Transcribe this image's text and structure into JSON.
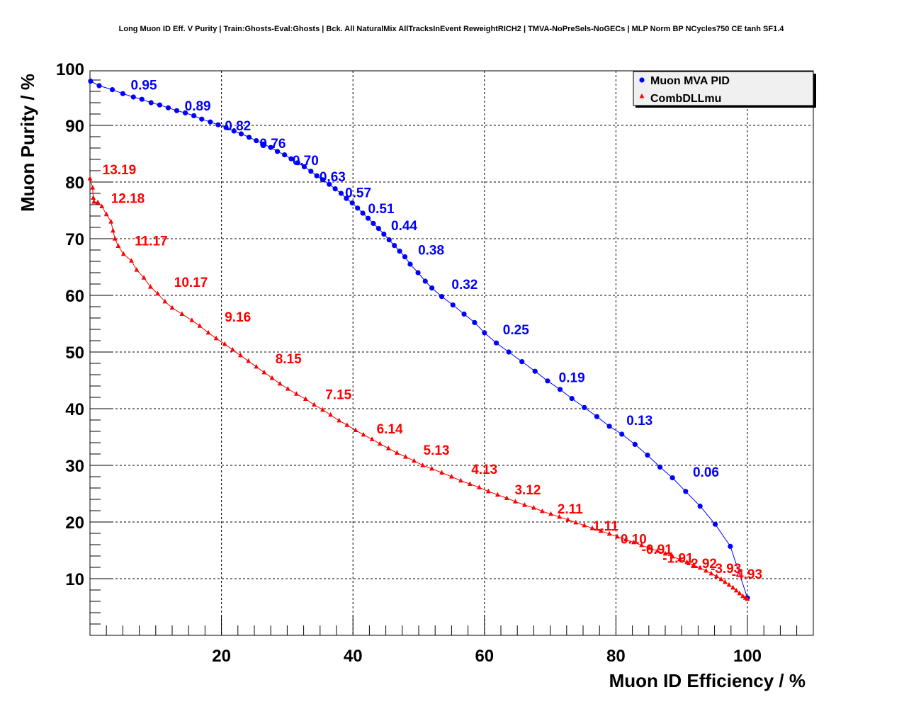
{
  "chart_data": {
    "type": "scatter",
    "title": "Long Muon ID Eff. V Purity | Train:Ghosts-Eval:Ghosts | Bck. All NaturalMix AllTracksInEvent ReweightRICH2 | TMVA-NoPreSels-NoGECs | MLP Norm BP NCycles750 CE tanh SF1.4",
    "xlabel": "Muon ID Efficiency / %",
    "ylabel": "Muon Purity / %",
    "xlim": [
      0,
      110
    ],
    "ylim": [
      0,
      100
    ],
    "x_ticks": [
      20,
      40,
      60,
      80,
      100
    ],
    "y_ticks": [
      10,
      20,
      30,
      40,
      50,
      60,
      70,
      80,
      90,
      100
    ],
    "grid": true,
    "legend_position": "top-right",
    "series": [
      {
        "name": "Muon MVA PID",
        "color": "#0000ff",
        "marker": "circle",
        "points": [
          [
            0.1,
            97.8
          ],
          [
            1.4,
            97.0
          ],
          [
            3.4,
            96.3
          ],
          [
            5.0,
            95.6
          ],
          [
            6.6,
            95.0
          ],
          [
            7.9,
            94.6
          ],
          [
            9.3,
            94.0
          ],
          [
            10.6,
            93.6
          ],
          [
            11.9,
            93.1
          ],
          [
            13.2,
            92.6
          ],
          [
            14.5,
            92.2
          ],
          [
            15.8,
            91.7
          ],
          [
            17.0,
            91.1
          ],
          [
            18.3,
            90.6
          ],
          [
            19.5,
            90.1
          ],
          [
            20.7,
            89.6
          ],
          [
            21.9,
            89.0
          ],
          [
            23.0,
            88.5
          ],
          [
            24.2,
            87.9
          ],
          [
            25.3,
            87.3
          ],
          [
            26.4,
            86.7
          ],
          [
            27.5,
            86.1
          ],
          [
            28.5,
            85.4
          ],
          [
            29.6,
            84.8
          ],
          [
            30.6,
            84.1
          ],
          [
            31.6,
            83.4
          ],
          [
            32.6,
            82.7
          ],
          [
            33.6,
            81.9
          ],
          [
            34.5,
            81.1
          ],
          [
            35.4,
            80.4
          ],
          [
            36.4,
            79.6
          ],
          [
            37.3,
            78.8
          ],
          [
            38.2,
            78.0
          ],
          [
            39.0,
            77.1
          ],
          [
            39.9,
            76.3
          ],
          [
            40.7,
            75.4
          ],
          [
            41.5,
            74.5
          ],
          [
            42.3,
            73.6
          ],
          [
            43.1,
            72.7
          ],
          [
            43.9,
            71.8
          ],
          [
            44.7,
            70.8
          ],
          [
            45.5,
            69.8
          ],
          [
            46.3,
            68.8
          ],
          [
            47.1,
            67.8
          ],
          [
            47.9,
            66.8
          ],
          [
            48.7,
            65.5
          ],
          [
            49.9,
            64.0
          ],
          [
            51.0,
            62.5
          ],
          [
            52.0,
            61.3
          ],
          [
            53.5,
            59.8
          ],
          [
            55.2,
            58.3
          ],
          [
            56.9,
            56.7
          ],
          [
            58.5,
            55.2
          ],
          [
            60.0,
            53.4
          ],
          [
            61.8,
            51.6
          ],
          [
            63.7,
            50.0
          ],
          [
            65.7,
            48.3
          ],
          [
            67.7,
            46.6
          ],
          [
            69.6,
            44.9
          ],
          [
            71.5,
            43.4
          ],
          [
            73.3,
            41.8
          ],
          [
            75.2,
            40.2
          ],
          [
            77.1,
            38.6
          ],
          [
            79.0,
            36.9
          ],
          [
            80.9,
            35.5
          ],
          [
            82.9,
            33.7
          ],
          [
            84.8,
            31.8
          ],
          [
            86.7,
            29.7
          ],
          [
            88.6,
            27.8
          ],
          [
            90.6,
            25.4
          ],
          [
            92.8,
            22.8
          ],
          [
            95.1,
            19.6
          ],
          [
            97.4,
            15.7
          ],
          [
            100.0,
            6.6
          ]
        ]
      },
      {
        "name": "CombDLLmu",
        "color": "#ff0000",
        "marker": "triangle",
        "points": [
          [
            0.0,
            80.6
          ],
          [
            0.4,
            79.0
          ],
          [
            0.5,
            77.2
          ],
          [
            0.6,
            76.5
          ],
          [
            1.2,
            76.4
          ],
          [
            1.8,
            75.7
          ],
          [
            2.5,
            74.3
          ],
          [
            3.2,
            73.0
          ],
          [
            3.5,
            71.4
          ],
          [
            3.8,
            70.0
          ],
          [
            4.3,
            68.7
          ],
          [
            5.1,
            67.3
          ],
          [
            6.3,
            66.1
          ],
          [
            7.1,
            64.5
          ],
          [
            8.2,
            63.1
          ],
          [
            9.2,
            61.5
          ],
          [
            10.3,
            60.3
          ],
          [
            11.4,
            58.9
          ],
          [
            12.5,
            57.8
          ],
          [
            14.0,
            56.7
          ],
          [
            15.5,
            55.6
          ],
          [
            16.7,
            54.6
          ],
          [
            18.0,
            53.4
          ],
          [
            19.2,
            52.4
          ],
          [
            20.5,
            51.4
          ],
          [
            21.7,
            50.4
          ],
          [
            22.9,
            49.4
          ],
          [
            24.1,
            48.4
          ],
          [
            25.3,
            47.4
          ],
          [
            26.5,
            46.4
          ],
          [
            27.7,
            45.4
          ],
          [
            28.9,
            44.4
          ],
          [
            30.1,
            43.5
          ],
          [
            31.4,
            42.6
          ],
          [
            32.8,
            41.7
          ],
          [
            34.1,
            40.7
          ],
          [
            35.4,
            39.8
          ],
          [
            36.6,
            38.9
          ],
          [
            37.9,
            37.9
          ],
          [
            39.1,
            37.1
          ],
          [
            40.4,
            36.2
          ],
          [
            41.6,
            35.4
          ],
          [
            42.9,
            34.6
          ],
          [
            44.1,
            33.8
          ],
          [
            45.4,
            33.0
          ],
          [
            46.7,
            32.2
          ],
          [
            48.0,
            31.5
          ],
          [
            49.3,
            30.8
          ],
          [
            50.6,
            30.0
          ],
          [
            52.0,
            29.4
          ],
          [
            53.5,
            28.7
          ],
          [
            55.0,
            28.0
          ],
          [
            56.4,
            27.3
          ],
          [
            57.8,
            26.7
          ],
          [
            59.2,
            26.1
          ],
          [
            60.6,
            25.4
          ],
          [
            62.0,
            24.8
          ],
          [
            63.4,
            24.2
          ],
          [
            64.7,
            23.6
          ],
          [
            66.1,
            23.0
          ],
          [
            67.5,
            22.5
          ],
          [
            68.8,
            21.9
          ],
          [
            70.1,
            21.4
          ],
          [
            71.4,
            20.9
          ],
          [
            72.7,
            20.4
          ],
          [
            73.9,
            19.9
          ],
          [
            75.2,
            19.4
          ],
          [
            76.4,
            18.9
          ],
          [
            77.7,
            18.4
          ],
          [
            79.0,
            17.9
          ],
          [
            80.2,
            17.4
          ],
          [
            81.5,
            16.9
          ],
          [
            82.7,
            16.4
          ],
          [
            83.9,
            15.9
          ],
          [
            85.1,
            15.4
          ],
          [
            86.3,
            14.9
          ],
          [
            87.5,
            14.4
          ],
          [
            88.6,
            13.9
          ],
          [
            89.7,
            13.4
          ],
          [
            90.8,
            12.9
          ],
          [
            91.8,
            12.4
          ],
          [
            92.8,
            11.9
          ],
          [
            93.7,
            11.4
          ],
          [
            94.5,
            10.9
          ],
          [
            95.3,
            10.4
          ],
          [
            96.0,
            9.9
          ],
          [
            96.6,
            9.4
          ],
          [
            97.2,
            8.9
          ],
          [
            97.8,
            8.4
          ],
          [
            98.3,
            7.9
          ],
          [
            98.8,
            7.4
          ],
          [
            99.3,
            6.9
          ],
          [
            99.7,
            6.6
          ],
          [
            100.0,
            6.4
          ]
        ]
      }
    ],
    "annotations": [
      {
        "series": "Muon MVA PID",
        "text": "0.95",
        "x": 6.2,
        "y": 96.3
      },
      {
        "series": "Muon MVA PID",
        "text": "0.89",
        "x": 14.4,
        "y": 92.6
      },
      {
        "series": "Muon MVA PID",
        "text": "0.82",
        "x": 20.5,
        "y": 89.1
      },
      {
        "series": "Muon MVA PID",
        "text": "0.76",
        "x": 25.8,
        "y": 86.0
      },
      {
        "series": "Muon MVA PID",
        "text": "0.70",
        "x": 30.8,
        "y": 83.0
      },
      {
        "series": "Muon MVA PID",
        "text": "0.63",
        "x": 34.9,
        "y": 80.1
      },
      {
        "series": "Muon MVA PID",
        "text": "0.57",
        "x": 38.8,
        "y": 77.3
      },
      {
        "series": "Muon MVA PID",
        "text": "0.51",
        "x": 42.3,
        "y": 74.5
      },
      {
        "series": "Muon MVA PID",
        "text": "0.44",
        "x": 45.8,
        "y": 71.5
      },
      {
        "series": "Muon MVA PID",
        "text": "0.38",
        "x": 49.9,
        "y": 67.2
      },
      {
        "series": "Muon MVA PID",
        "text": "0.32",
        "x": 55.0,
        "y": 61.1
      },
      {
        "series": "Muon MVA PID",
        "text": "0.25",
        "x": 62.8,
        "y": 53.1
      },
      {
        "series": "Muon MVA PID",
        "text": "0.19",
        "x": 71.3,
        "y": 44.7
      },
      {
        "series": "Muon MVA PID",
        "text": "0.13",
        "x": 81.6,
        "y": 37.1
      },
      {
        "series": "Muon MVA PID",
        "text": "0.06",
        "x": 91.7,
        "y": 28.0
      },
      {
        "series": "CombDLLmu",
        "text": "13.19",
        "x": 1.9,
        "y": 81.4
      },
      {
        "series": "CombDLLmu",
        "text": "12.18",
        "x": 3.2,
        "y": 76.3
      },
      {
        "series": "CombDLLmu",
        "text": "11.17",
        "x": 6.8,
        "y": 68.8
      },
      {
        "series": "CombDLLmu",
        "text": "10.17",
        "x": 12.8,
        "y": 61.5
      },
      {
        "series": "CombDLLmu",
        "text": "9.16",
        "x": 20.5,
        "y": 55.4
      },
      {
        "series": "CombDLLmu",
        "text": "8.15",
        "x": 28.2,
        "y": 48.0
      },
      {
        "series": "CombDLLmu",
        "text": "7.15",
        "x": 35.8,
        "y": 41.7
      },
      {
        "series": "CombDLLmu",
        "text": "6.14",
        "x": 43.6,
        "y": 35.6
      },
      {
        "series": "CombDLLmu",
        "text": "5.13",
        "x": 50.7,
        "y": 31.9
      },
      {
        "series": "CombDLLmu",
        "text": "4.13",
        "x": 58.0,
        "y": 28.5
      },
      {
        "series": "CombDLLmu",
        "text": "3.12",
        "x": 64.6,
        "y": 24.9
      },
      {
        "series": "CombDLLmu",
        "text": "2.11",
        "x": 71.1,
        "y": 21.5
      },
      {
        "series": "CombDLLmu",
        "text": "1.11",
        "x": 76.5,
        "y": 18.5
      },
      {
        "series": "CombDLLmu",
        "text": "0.10",
        "x": 80.7,
        "y": 16.2
      },
      {
        "series": "CombDLLmu",
        "text": "-0.91",
        "x": 83.9,
        "y": 14.4
      },
      {
        "series": "CombDLLmu",
        "text": "-1.91",
        "x": 87.1,
        "y": 12.8
      },
      {
        "series": "CombDLLmu",
        "text": "-2.92",
        "x": 90.7,
        "y": 11.9
      },
      {
        "series": "CombDLLmu",
        "text": "-3.93",
        "x": 94.4,
        "y": 11.0
      },
      {
        "series": "CombDLLmu",
        "text": "-4.93",
        "x": 97.6,
        "y": 10.0
      }
    ]
  }
}
